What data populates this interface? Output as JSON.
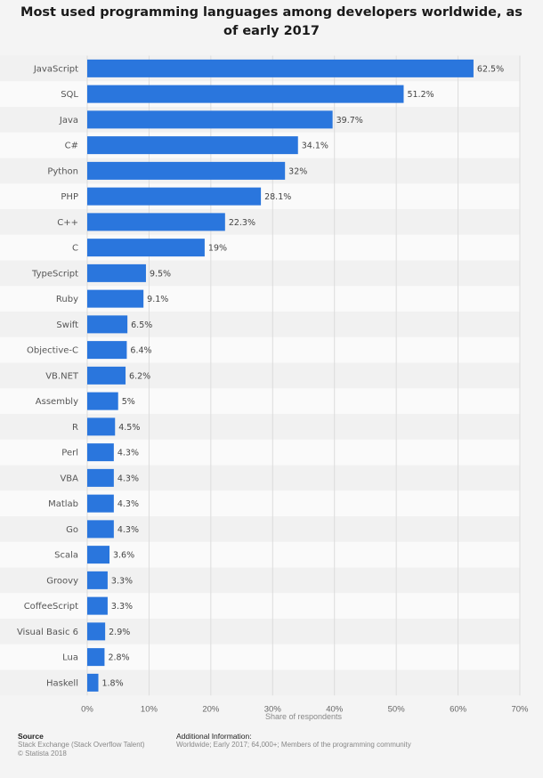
{
  "title": "Most used programming languages among developers worldwide, as of early 2017",
  "chart_data": {
    "type": "bar",
    "orientation": "horizontal",
    "categories": [
      "JavaScript",
      "SQL",
      "Java",
      "C#",
      "Python",
      "PHP",
      "C++",
      "C",
      "TypeScript",
      "Ruby",
      "Swift",
      "Objective-C",
      "VB.NET",
      "Assembly",
      "R",
      "Perl",
      "VBA",
      "Matlab",
      "Go",
      "Scala",
      "Groovy",
      "CoffeeScript",
      "Visual Basic 6",
      "Lua",
      "Haskell"
    ],
    "values": [
      62.5,
      51.2,
      39.7,
      34.1,
      32,
      28.1,
      22.3,
      19,
      9.5,
      9.1,
      6.5,
      6.4,
      6.2,
      5,
      4.5,
      4.3,
      4.3,
      4.3,
      4.3,
      3.6,
      3.3,
      3.3,
      2.9,
      2.8,
      1.8
    ],
    "value_labels": [
      "62.5%",
      "51.2%",
      "39.7%",
      "34.1%",
      "32%",
      "28.1%",
      "22.3%",
      "19%",
      "9.5%",
      "9.1%",
      "6.5%",
      "6.4%",
      "6.2%",
      "5%",
      "4.5%",
      "4.3%",
      "4.3%",
      "4.3%",
      "4.3%",
      "3.6%",
      "3.3%",
      "3.3%",
      "2.9%",
      "2.8%",
      "1.8%"
    ],
    "xlabel": "Share of respondents",
    "ylabel": "",
    "xlim": [
      0,
      70
    ],
    "xticks": [
      0,
      10,
      20,
      30,
      40,
      50,
      60,
      70
    ],
    "xtick_labels": [
      "0%",
      "10%",
      "20%",
      "30%",
      "40%",
      "50%",
      "60%",
      "70%"
    ],
    "grid": true,
    "bar_color": "#2a76dd"
  },
  "footer": {
    "source_heading": "Source",
    "source_line1": "Stack Exchange (Stack Overflow Talent)",
    "source_line2": "© Statista 2018",
    "info_heading": "Additional Information:",
    "info_text": "Worldwide; Early 2017; 64,000+; Members of the programming community"
  }
}
